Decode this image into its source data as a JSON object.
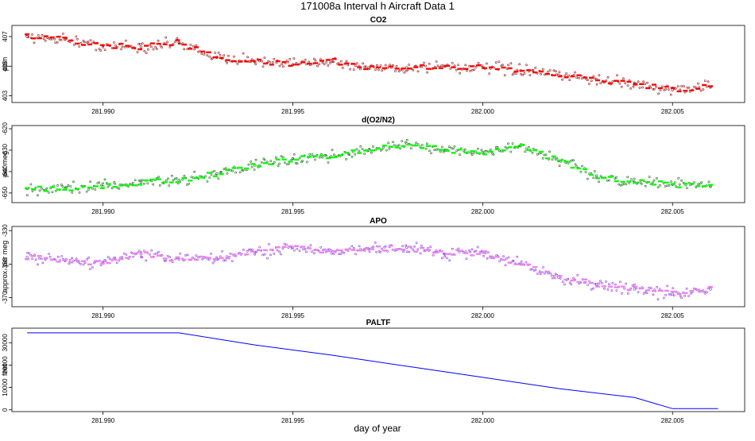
{
  "page_title": "171008a   Interval h Aircraft Data 1",
  "x_axis_label": "day of year",
  "chart_data": [
    {
      "id": "co2",
      "type": "scatter",
      "title": "CO2",
      "ylabel": "ppm",
      "x_ticks": [
        "281.990",
        "281.995",
        "282.000",
        "282.005"
      ],
      "y_ticks": [
        "407",
        "405",
        "403"
      ],
      "xlim": [
        281.9876,
        282.0069
      ],
      "ylim": [
        402.55,
        407.75
      ],
      "color_points": "#8b0000",
      "color_segments": "#ff0000",
      "x": [
        281.988,
        281.989,
        281.99,
        281.991,
        281.992,
        281.993,
        281.994,
        281.995,
        281.996,
        281.997,
        281.998,
        281.999,
        282.0,
        282.001,
        282.002,
        282.003,
        282.004,
        282.005,
        282.006
      ],
      "values": [
        407.0,
        406.8,
        406.4,
        406.3,
        406.6,
        405.6,
        405.3,
        405.1,
        405.4,
        404.9,
        404.9,
        405.0,
        404.9,
        404.7,
        404.4,
        404.1,
        403.8,
        403.4,
        403.6
      ]
    },
    {
      "id": "d_o2_n2",
      "type": "scatter",
      "title": "d(O2/N2)",
      "ylabel": "per meg",
      "x_ticks": [
        "281.990",
        "281.995",
        "282.000",
        "282.005"
      ],
      "y_ticks": [
        "-620",
        "-630",
        "-640",
        "-650"
      ],
      "xlim": [
        281.9876,
        282.0069
      ],
      "ylim": [
        -654.5,
        -618.5
      ],
      "color_points": "#006400",
      "color_segments": "#00ff00",
      "x": [
        281.988,
        281.989,
        281.99,
        281.991,
        281.992,
        281.993,
        281.994,
        281.995,
        281.996,
        281.997,
        281.998,
        281.999,
        282.0,
        282.001,
        282.002,
        282.003,
        282.004,
        282.005,
        282.006
      ],
      "values": [
        -648,
        -648,
        -647,
        -645,
        -644,
        -641,
        -637,
        -634,
        -633,
        -630,
        -627,
        -630,
        -631,
        -628,
        -635,
        -642,
        -645,
        -646,
        -647
      ]
    },
    {
      "id": "apo",
      "type": "scatter",
      "title": "APO",
      "ylabel": "approx. per meg",
      "x_ticks": [
        "281.990",
        "281.995",
        "282.000",
        "282.005"
      ],
      "y_ticks": [
        "-330",
        "-350",
        "-370"
      ],
      "xlim": [
        281.9876,
        282.0069
      ],
      "ylim": [
        -375.5,
        -327.5
      ],
      "color_points": "#8a2be2",
      "color_segments": "#ee82ee",
      "x": [
        281.988,
        281.989,
        281.99,
        281.991,
        281.992,
        281.993,
        281.994,
        281.995,
        281.996,
        281.997,
        281.998,
        281.999,
        282.0,
        282.001,
        282.002,
        282.003,
        282.004,
        282.005,
        282.006
      ],
      "values": [
        -346,
        -348,
        -349,
        -344,
        -347,
        -347,
        -343,
        -340,
        -342,
        -341,
        -340,
        -344,
        -343,
        -350,
        -358,
        -362,
        -365,
        -368,
        -365
      ]
    },
    {
      "id": "paltf",
      "type": "line",
      "title": "PALTF",
      "ylabel": "feet",
      "x_ticks": [
        "281.990",
        "281.995",
        "282.000",
        "282.005"
      ],
      "y_ticks": [
        "0",
        "10000",
        "20000",
        "30000"
      ],
      "xlim": [
        281.9876,
        282.0069
      ],
      "ylim": [
        -800,
        36500
      ],
      "color_line": "#0000ff",
      "x": [
        281.988,
        281.992,
        281.994,
        281.996,
        281.998,
        282.0,
        282.002,
        282.004,
        282.005,
        282.0062
      ],
      "values": [
        34400,
        34400,
        29000,
        24500,
        19500,
        14500,
        9500,
        5500,
        500,
        500
      ]
    }
  ]
}
